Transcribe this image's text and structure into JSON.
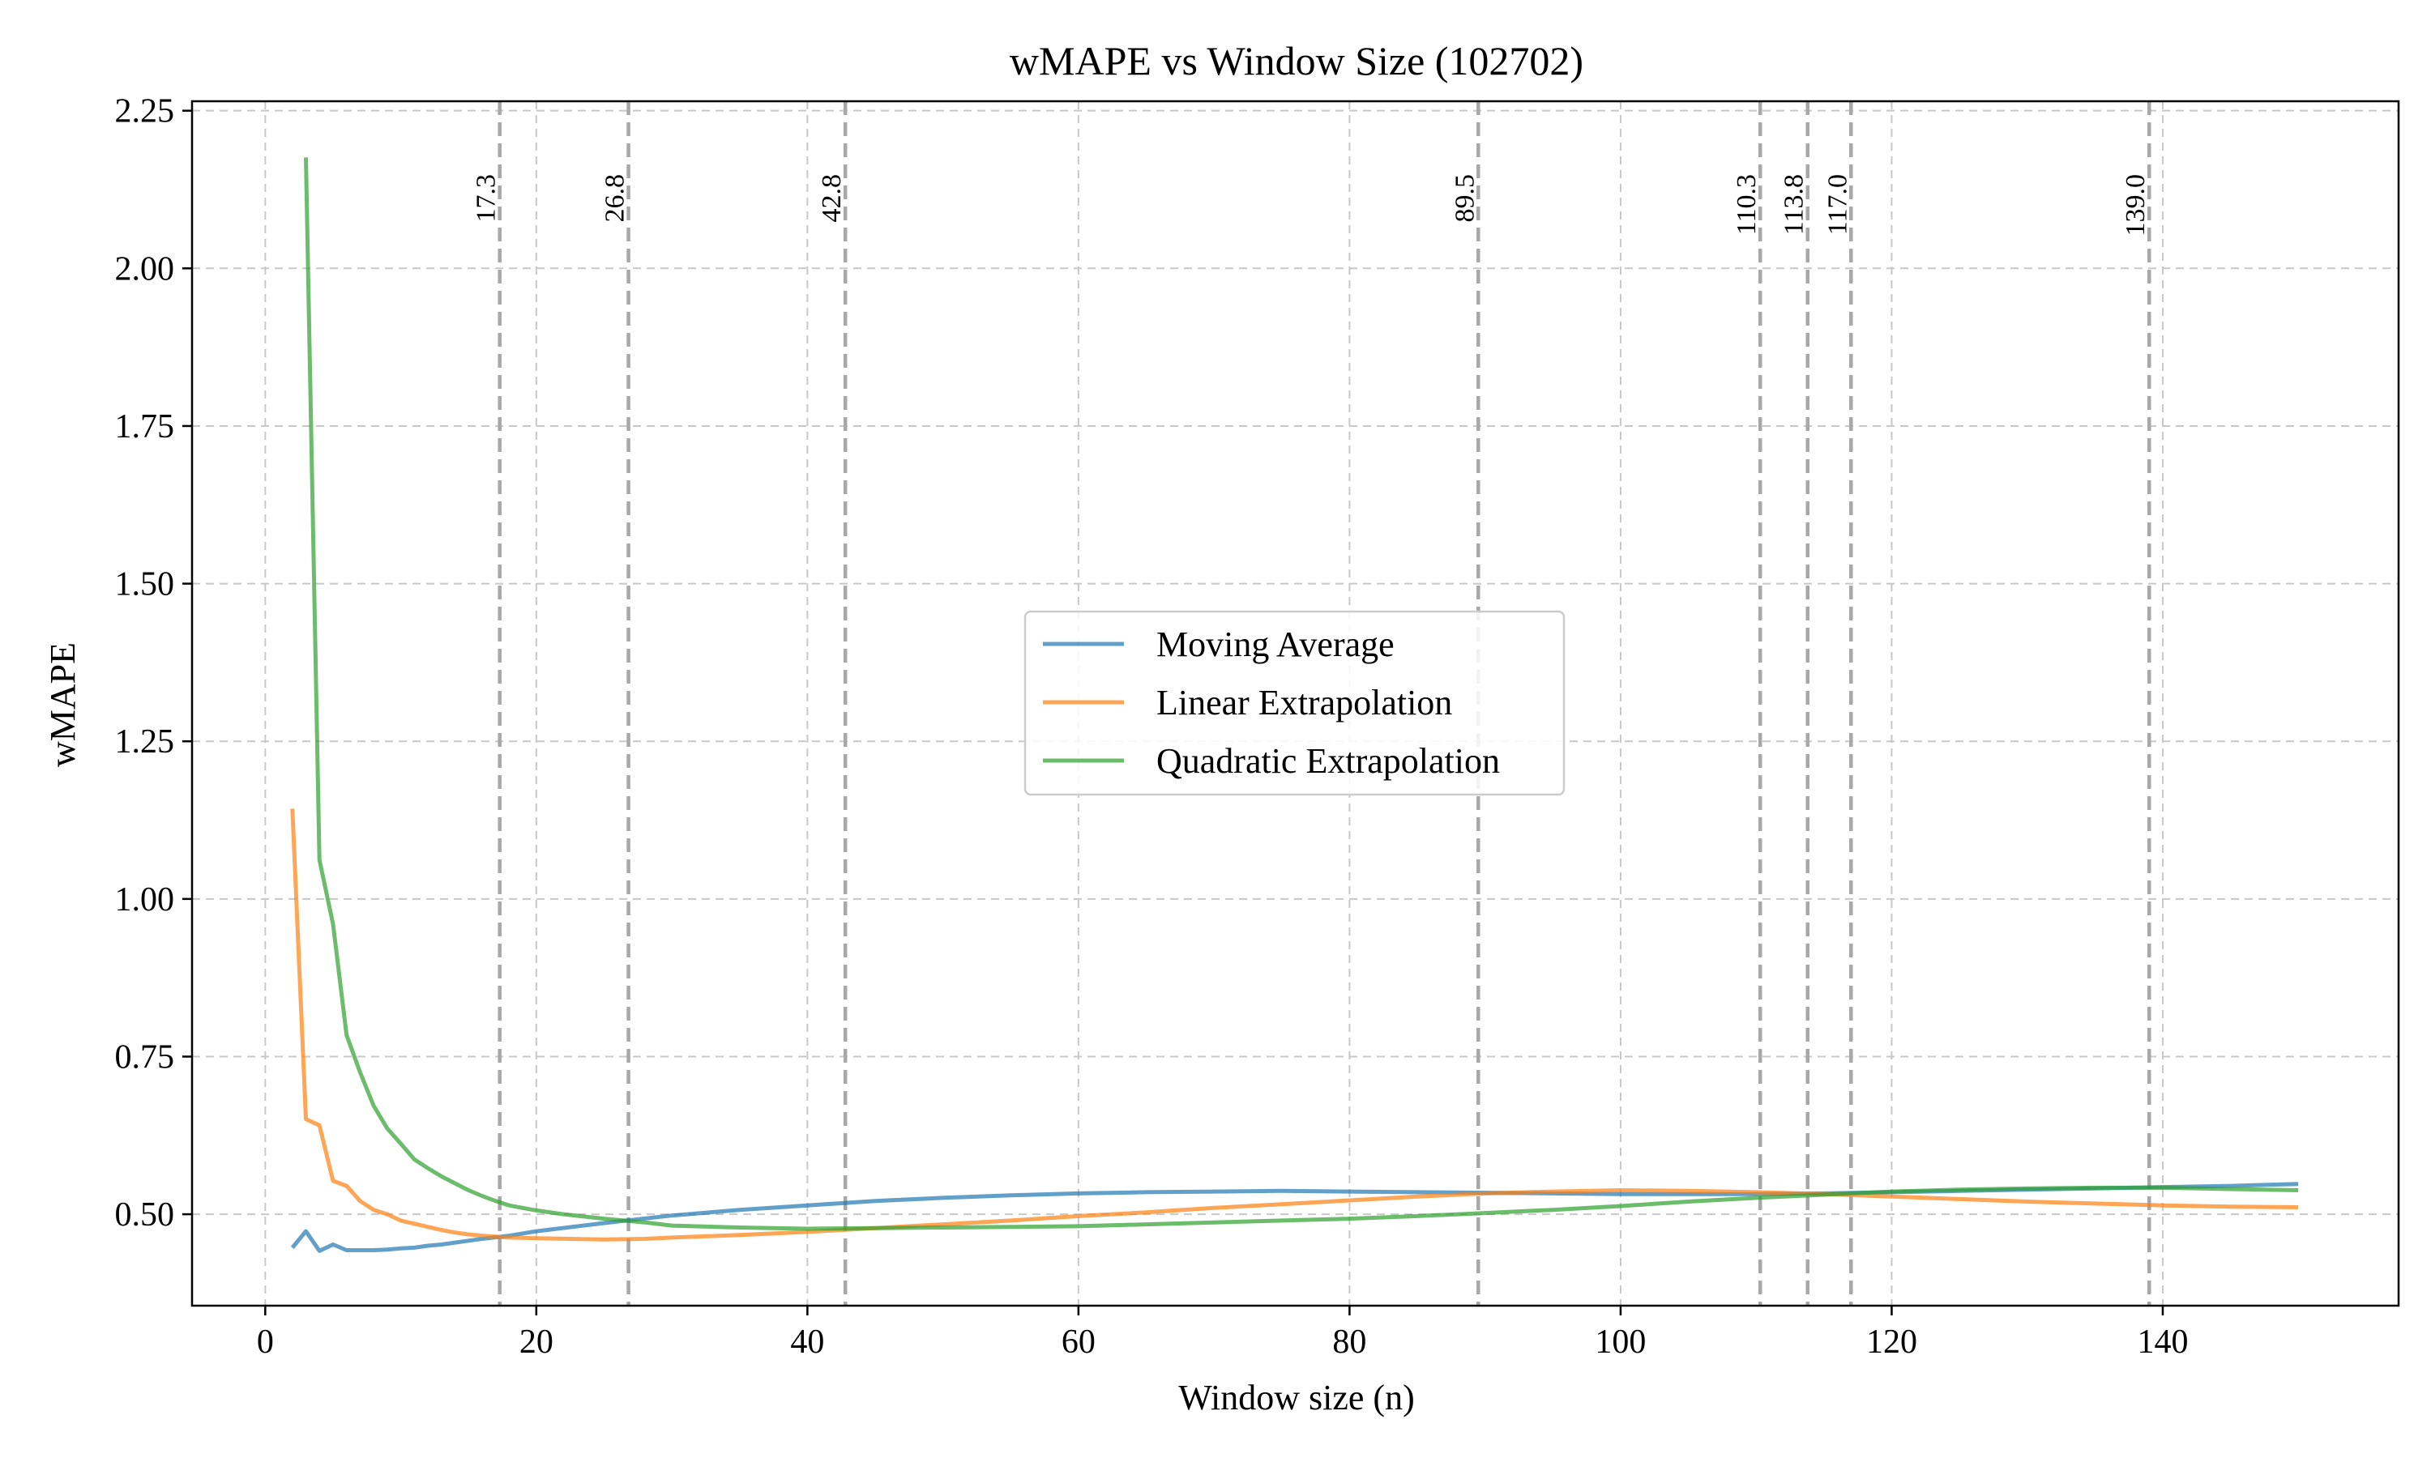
{
  "chart_data": {
    "type": "line",
    "title": "wMAPE vs Window Size (102702)",
    "xlabel": "Window size (n)",
    "ylabel": "wMAPE",
    "xlim": [
      -5.4,
      157.4
    ],
    "ylim": [
      0.355,
      2.265
    ],
    "xticks": [
      0,
      20,
      40,
      60,
      80,
      100,
      120,
      140
    ],
    "yticks": [
      0.5,
      0.75,
      1.0,
      1.25,
      1.5,
      1.75,
      2.0,
      2.25
    ],
    "xtick_labels": [
      "0",
      "20",
      "40",
      "60",
      "80",
      "100",
      "120",
      "140"
    ],
    "ytick_labels": [
      "0.50",
      "0.75",
      "1.00",
      "1.25",
      "1.50",
      "1.75",
      "2.00",
      "2.25"
    ],
    "grid": true,
    "legend_position": "center",
    "vlines": [
      {
        "x": 17.3,
        "label": "17.3"
      },
      {
        "x": 26.8,
        "label": "26.8"
      },
      {
        "x": 42.8,
        "label": "42.8"
      },
      {
        "x": 89.5,
        "label": "89.5"
      },
      {
        "x": 110.3,
        "label": "110.3"
      },
      {
        "x": 113.8,
        "label": "113.8"
      },
      {
        "x": 117.0,
        "label": "117.0"
      },
      {
        "x": 139.0,
        "label": "139.0"
      }
    ],
    "series": [
      {
        "name": "Moving Average",
        "color": "#1f77b4",
        "points": [
          [
            2,
            0.447
          ],
          [
            3,
            0.473
          ],
          [
            4,
            0.442
          ],
          [
            5,
            0.452
          ],
          [
            6,
            0.443
          ],
          [
            7,
            0.443
          ],
          [
            8,
            0.443
          ],
          [
            9,
            0.444
          ],
          [
            10,
            0.446
          ],
          [
            11,
            0.447
          ],
          [
            12,
            0.45
          ],
          [
            13,
            0.452
          ],
          [
            14,
            0.455
          ],
          [
            15,
            0.458
          ],
          [
            16,
            0.461
          ],
          [
            18,
            0.466
          ],
          [
            20,
            0.473
          ],
          [
            25,
            0.486
          ],
          [
            30,
            0.498
          ],
          [
            35,
            0.507
          ],
          [
            40,
            0.514
          ],
          [
            45,
            0.521
          ],
          [
            50,
            0.526
          ],
          [
            55,
            0.53
          ],
          [
            60,
            0.533
          ],
          [
            65,
            0.535
          ],
          [
            70,
            0.536
          ],
          [
            75,
            0.537
          ],
          [
            80,
            0.536
          ],
          [
            85,
            0.535
          ],
          [
            90,
            0.534
          ],
          [
            95,
            0.533
          ],
          [
            100,
            0.532
          ],
          [
            105,
            0.532
          ],
          [
            110,
            0.532
          ],
          [
            115,
            0.533
          ],
          [
            120,
            0.535
          ],
          [
            125,
            0.537
          ],
          [
            130,
            0.539
          ],
          [
            135,
            0.541
          ],
          [
            140,
            0.543
          ],
          [
            145,
            0.545
          ],
          [
            150,
            0.548
          ]
        ]
      },
      {
        "name": "Linear Extrapolation",
        "color": "#ff7f0e",
        "points": [
          [
            2,
            1.143
          ],
          [
            3,
            0.651
          ],
          [
            4,
            0.641
          ],
          [
            5,
            0.553
          ],
          [
            6,
            0.545
          ],
          [
            7,
            0.521
          ],
          [
            8,
            0.507
          ],
          [
            9,
            0.5
          ],
          [
            10,
            0.49
          ],
          [
            11,
            0.485
          ],
          [
            12,
            0.48
          ],
          [
            13,
            0.475
          ],
          [
            14,
            0.471
          ],
          [
            15,
            0.468
          ],
          [
            16,
            0.466
          ],
          [
            18,
            0.463
          ],
          [
            20,
            0.462
          ],
          [
            25,
            0.46
          ],
          [
            28,
            0.461
          ],
          [
            30,
            0.463
          ],
          [
            35,
            0.467
          ],
          [
            40,
            0.472
          ],
          [
            45,
            0.478
          ],
          [
            50,
            0.484
          ],
          [
            55,
            0.49
          ],
          [
            60,
            0.497
          ],
          [
            65,
            0.503
          ],
          [
            70,
            0.51
          ],
          [
            75,
            0.516
          ],
          [
            80,
            0.522
          ],
          [
            85,
            0.528
          ],
          [
            90,
            0.533
          ],
          [
            95,
            0.536
          ],
          [
            100,
            0.538
          ],
          [
            105,
            0.537
          ],
          [
            110,
            0.535
          ],
          [
            115,
            0.532
          ],
          [
            120,
            0.528
          ],
          [
            125,
            0.524
          ],
          [
            130,
            0.52
          ],
          [
            135,
            0.517
          ],
          [
            140,
            0.514
          ],
          [
            145,
            0.512
          ],
          [
            150,
            0.511
          ]
        ]
      },
      {
        "name": "Quadratic Extrapolation",
        "color": "#2ca02c",
        "points": [
          [
            3,
            2.176
          ],
          [
            4,
            1.062
          ],
          [
            5,
            0.96
          ],
          [
            6,
            0.784
          ],
          [
            7,
            0.725
          ],
          [
            8,
            0.672
          ],
          [
            9,
            0.636
          ],
          [
            10,
            0.612
          ],
          [
            11,
            0.587
          ],
          [
            12,
            0.573
          ],
          [
            13,
            0.56
          ],
          [
            14,
            0.549
          ],
          [
            15,
            0.538
          ],
          [
            16,
            0.529
          ],
          [
            17,
            0.521
          ],
          [
            18,
            0.514
          ],
          [
            20,
            0.506
          ],
          [
            22,
            0.5
          ],
          [
            25,
            0.493
          ],
          [
            28,
            0.487
          ],
          [
            30,
            0.482
          ],
          [
            35,
            0.479
          ],
          [
            40,
            0.477
          ],
          [
            45,
            0.478
          ],
          [
            50,
            0.479
          ],
          [
            55,
            0.48
          ],
          [
            60,
            0.481
          ],
          [
            65,
            0.484
          ],
          [
            70,
            0.487
          ],
          [
            75,
            0.49
          ],
          [
            80,
            0.493
          ],
          [
            85,
            0.497
          ],
          [
            90,
            0.502
          ],
          [
            95,
            0.507
          ],
          [
            100,
            0.513
          ],
          [
            105,
            0.52
          ],
          [
            110,
            0.526
          ],
          [
            115,
            0.531
          ],
          [
            120,
            0.536
          ],
          [
            125,
            0.539
          ],
          [
            130,
            0.541
          ],
          [
            135,
            0.542
          ],
          [
            140,
            0.542
          ],
          [
            145,
            0.54
          ],
          [
            150,
            0.538
          ]
        ]
      }
    ]
  }
}
